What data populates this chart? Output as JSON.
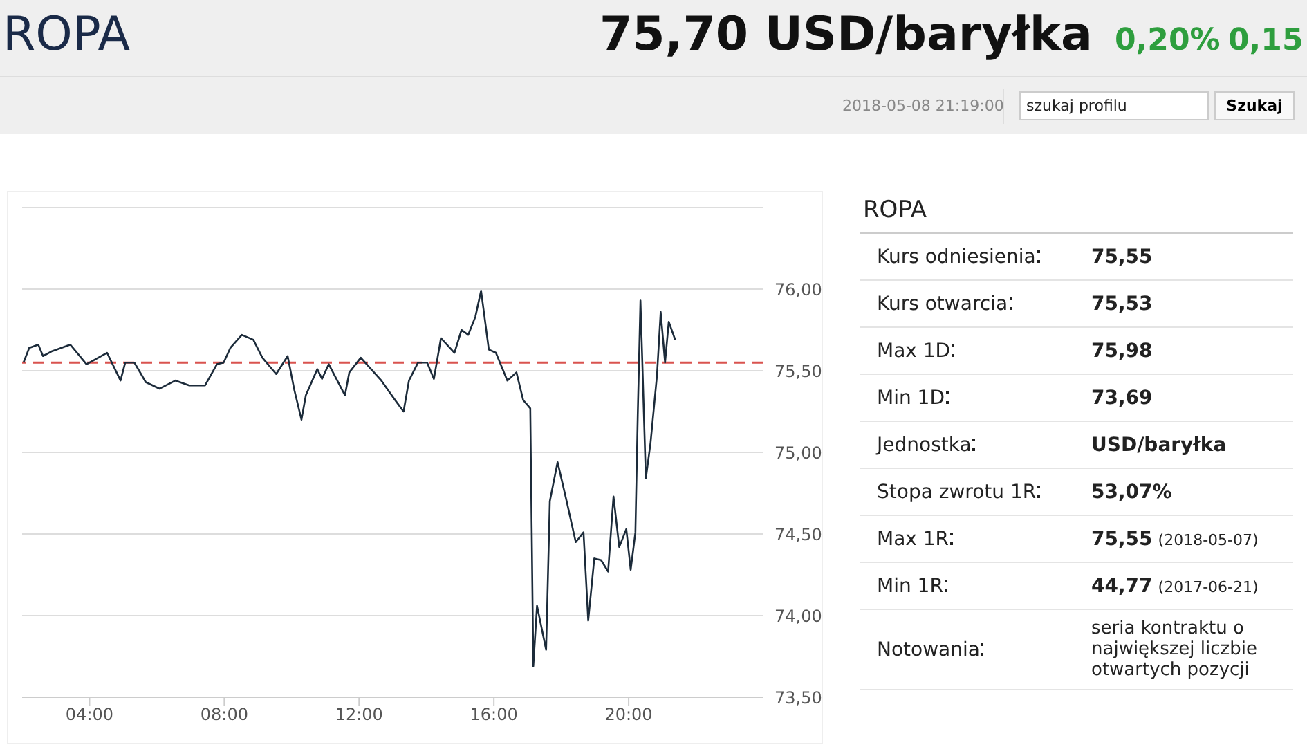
{
  "chart_data": [
    {
      "type": "line",
      "title": "ROPA",
      "annotations": [
        "75,70 USD/baryłka",
        "0,20%",
        "0,15",
        "2018-05-08 21:19:00",
        "szukaj profilu",
        "Szukaj"
      ],
      "x": [
        2.04,
        2.21,
        2.48,
        2.62,
        2.89,
        3.43,
        3.91,
        4.52,
        4.92,
        5.06,
        5.33,
        5.67,
        6.08,
        6.55,
        6.96,
        7.43,
        7.78,
        7.98,
        8.18,
        8.52,
        8.86,
        9.13,
        9.54,
        9.88,
        10.08,
        10.29,
        10.42,
        10.76,
        10.9,
        11.1,
        11.58,
        11.71,
        12.05,
        12.66,
        13.07,
        13.32,
        13.48,
        13.75,
        14.02,
        14.22,
        14.43,
        14.83,
        15.04,
        15.24,
        15.45,
        15.62,
        15.85,
        16.06,
        16.4,
        16.67,
        16.87,
        17.08,
        17.17,
        17.28,
        17.55,
        17.66,
        17.89,
        18.16,
        18.43,
        18.66,
        18.8,
        18.98,
        19.18,
        19.39,
        19.55,
        19.72,
        19.93,
        20.06,
        20.2,
        20.27,
        20.35,
        20.51,
        20.65,
        20.84,
        20.95,
        21.08,
        21.19,
        21.38
      ],
      "series": [
        {
          "color": "#1c2b3a",
          "values": [
            75.55,
            75.64,
            75.66,
            75.59,
            75.62,
            75.66,
            75.54,
            75.61,
            75.44,
            75.55,
            75.55,
            75.43,
            75.39,
            75.44,
            75.41,
            75.41,
            75.54,
            75.55,
            75.64,
            75.72,
            75.69,
            75.58,
            75.48,
            75.59,
            75.38,
            75.2,
            75.35,
            75.51,
            75.45,
            75.54,
            75.35,
            75.49,
            75.58,
            75.44,
            75.32,
            75.25,
            75.44,
            75.55,
            75.55,
            75.45,
            75.7,
            75.61,
            75.75,
            75.72,
            75.83,
            75.99,
            75.63,
            75.61,
            75.44,
            75.49,
            75.32,
            75.27,
            73.69,
            74.06,
            73.79,
            74.7,
            74.94,
            74.7,
            74.45,
            74.51,
            73.97,
            74.35,
            74.34,
            74.27,
            74.73,
            74.42,
            74.53,
            74.28,
            74.51,
            75.23,
            75.93,
            74.84,
            75.06,
            75.47,
            75.86,
            75.55,
            75.8,
            75.69
          ]
        }
      ],
      "xlim": [
        2,
        24
      ],
      "xticks": [
        {
          "value": 4,
          "label": "04:00"
        },
        {
          "value": 8,
          "label": "08:00"
        },
        {
          "value": 12,
          "label": "12:00"
        },
        {
          "value": 16,
          "label": "16:00"
        },
        {
          "value": 20,
          "label": "20:00"
        }
      ],
      "ylim": [
        73.5,
        76.5
      ],
      "yticks": [
        {
          "value": 73.5,
          "label": "73,50"
        },
        {
          "value": 74,
          "label": "74,00"
        },
        {
          "value": 74.5,
          "label": "74,50"
        },
        {
          "value": 75,
          "label": "75,00"
        },
        {
          "value": 75.5,
          "label": "75,50"
        },
        {
          "value": 76,
          "label": "76,00"
        },
        {
          "value": 76.5,
          "label": null
        }
      ],
      "grid": "y",
      "marker": "none",
      "line_style": "solid",
      "ref_lines": [
        {
          "axis": "y",
          "value": 75.55,
          "color": "#d9534f",
          "line_style": "dashed"
        }
      ]
    },
    {
      "type": "other",
      "title": "ROPA",
      "categories": [
        "Kurs odniesienia",
        "Kurs otwarcia",
        "Max 1D",
        "Min 1D",
        "Jednostka",
        "Stopa zwrotu 1R",
        "Max 1R",
        "Min 1R",
        "Notowania"
      ],
      "value_labels": [
        "75,55",
        "75,53",
        "75,98",
        "73,69",
        "USD/baryłka",
        "53,07%",
        "75,55 (2018-05-07)",
        "44,77 (2017-06-21)",
        "seria kontraktu o największej liczbie otwartych pozycji"
      ]
    }
  ]
}
